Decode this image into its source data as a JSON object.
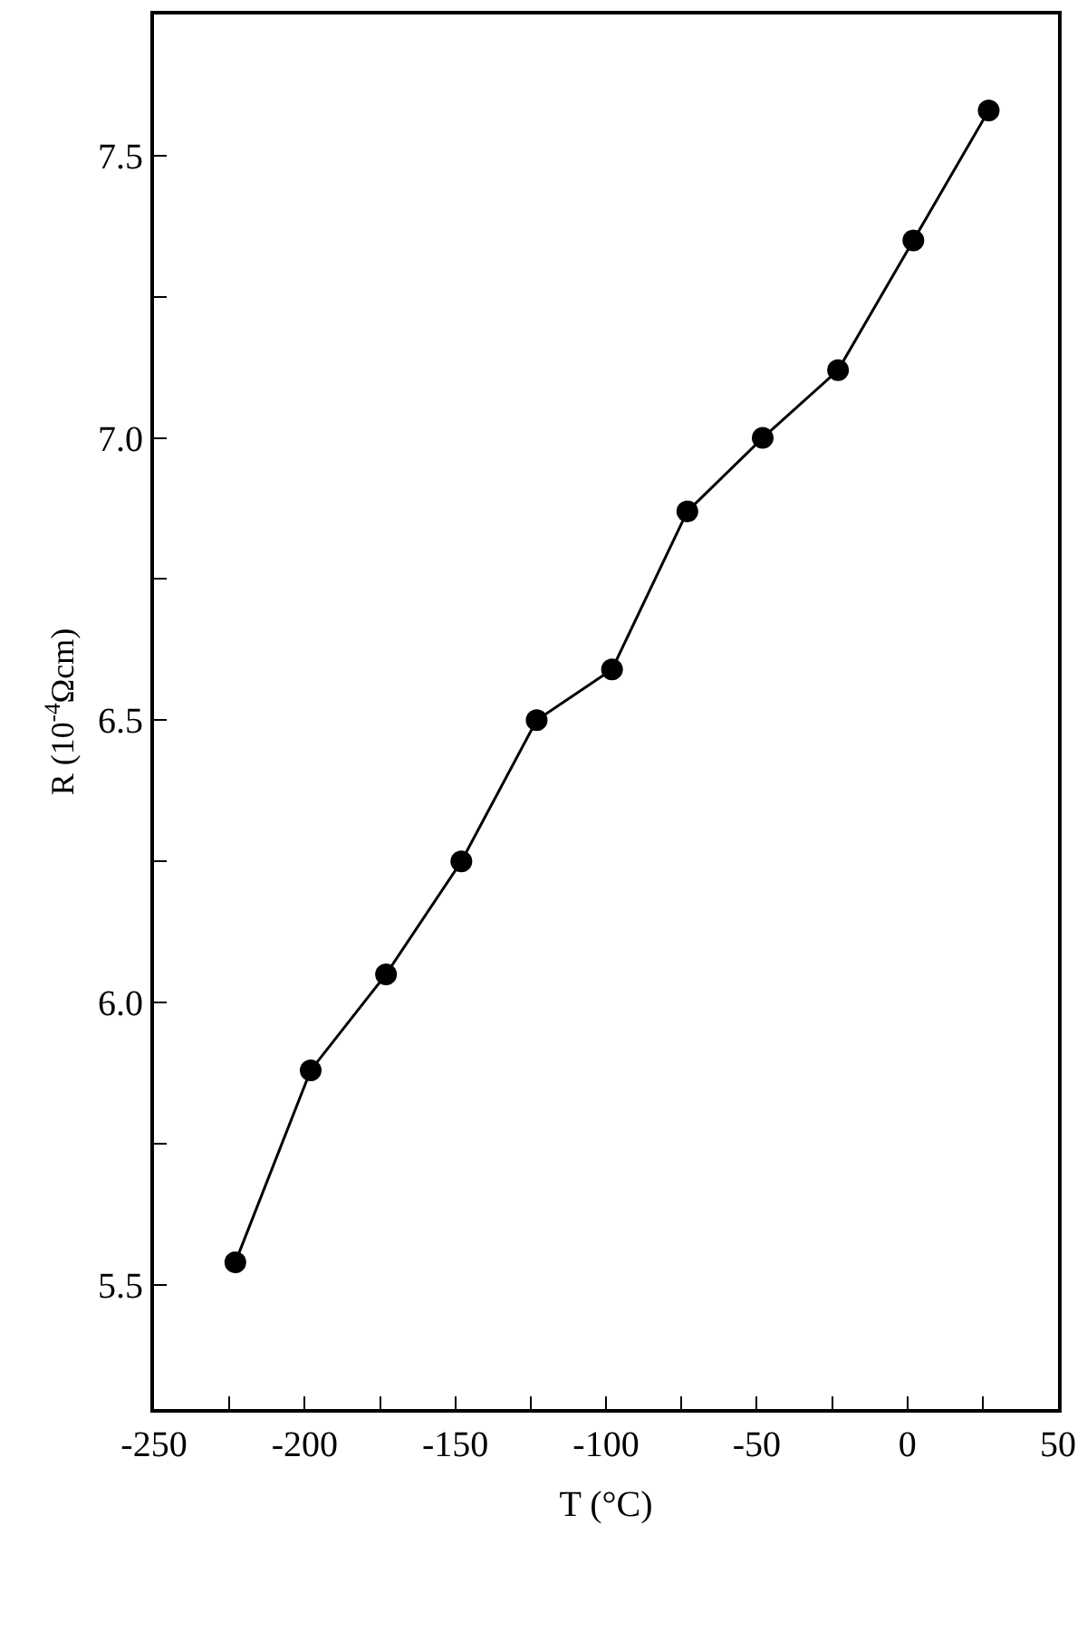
{
  "chart_data": {
    "type": "line",
    "xlabel": "T (°C)",
    "ylabel": "R (10$^{-4}$Ωcm)",
    "x": [
      -223,
      -198,
      -173,
      -148,
      -123,
      -98,
      -73,
      -48,
      -23,
      2,
      27
    ],
    "series": [
      {
        "color": "#000000",
        "values": [
          5.54,
          5.88,
          6.05,
          6.25,
          6.5,
          6.59,
          6.87,
          7.0,
          7.12,
          7.35,
          7.58
        ]
      }
    ],
    "xlim": [
      -250,
      50
    ],
    "xticks": [
      -250,
      {
        "value": -225,
        "label": null
      },
      -200,
      {
        "value": -175,
        "label": null
      },
      -150,
      {
        "value": -125,
        "label": null
      },
      -100,
      {
        "value": -75,
        "label": null
      },
      -50,
      {
        "value": -25,
        "label": null
      },
      0,
      {
        "value": 25,
        "label": null
      },
      50
    ],
    "ylim": [
      5.28,
      7.75
    ],
    "yticks": [
      5.5,
      {
        "value": 5.75,
        "label": null
      },
      {
        "value": 6.0,
        "label": "6.0"
      },
      {
        "value": 6.25,
        "label": null
      },
      6.5,
      {
        "value": 6.75,
        "label": null
      },
      {
        "value": 7.0,
        "label": "7.0"
      },
      {
        "value": 7.25,
        "label": null
      },
      7.5
    ],
    "marker": "circle",
    "line_style": "solid"
  }
}
